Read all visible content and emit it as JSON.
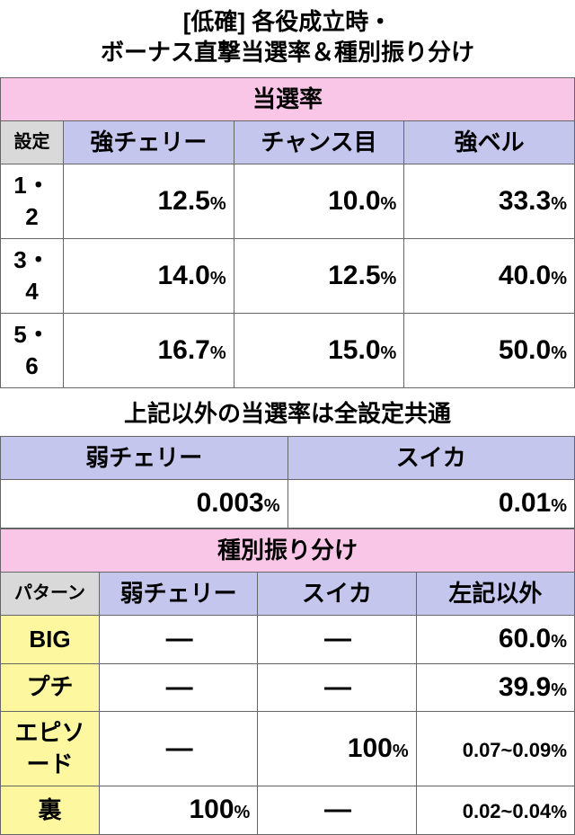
{
  "title_line1": "[低確] 各役成立時・",
  "title_line2": "ボーナス直撃当選率＆種別振り分け",
  "section1": {
    "header": "当選率",
    "cols": [
      "設定",
      "強チェリー",
      "チャンス目",
      "強ベル"
    ],
    "rows": [
      {
        "setting": "1・2",
        "v": [
          "12.5",
          "10.0",
          "33.3"
        ]
      },
      {
        "setting": "3・4",
        "v": [
          "14.0",
          "12.5",
          "40.0"
        ]
      },
      {
        "setting": "5・6",
        "v": [
          "16.7",
          "15.0",
          "50.0"
        ]
      }
    ]
  },
  "note": "上記以外の当選率は全設定共通",
  "section2": {
    "cols": [
      "弱チェリー",
      "スイカ"
    ],
    "vals": [
      "0.003",
      "0.01"
    ]
  },
  "section3": {
    "header": "種別振り分け",
    "cols": [
      "パターン",
      "弱チェリー",
      "スイカ",
      "左記以外"
    ],
    "rows": [
      {
        "pattern": "BIG",
        "weak": "—",
        "suika": "—",
        "other": "60.0",
        "other_pct": true
      },
      {
        "pattern": "プチ",
        "weak": "—",
        "suika": "—",
        "other": "39.9",
        "other_pct": true
      },
      {
        "pattern": "エピソード",
        "weak": "—",
        "suika": "100",
        "other": "0.07~0.09",
        "other_pct": true,
        "small": true
      },
      {
        "pattern": "裏",
        "weak": "100",
        "suika": "—",
        "other": "0.02~0.04",
        "other_pct": true,
        "small": true
      }
    ]
  },
  "pct_sign": "%",
  "dash": "—",
  "colors": {
    "pink": "#f9c6e8",
    "blue": "#c4c6ee",
    "gray": "#d9d9d9",
    "yellow": "#fdf8a0",
    "border": "#666666"
  }
}
